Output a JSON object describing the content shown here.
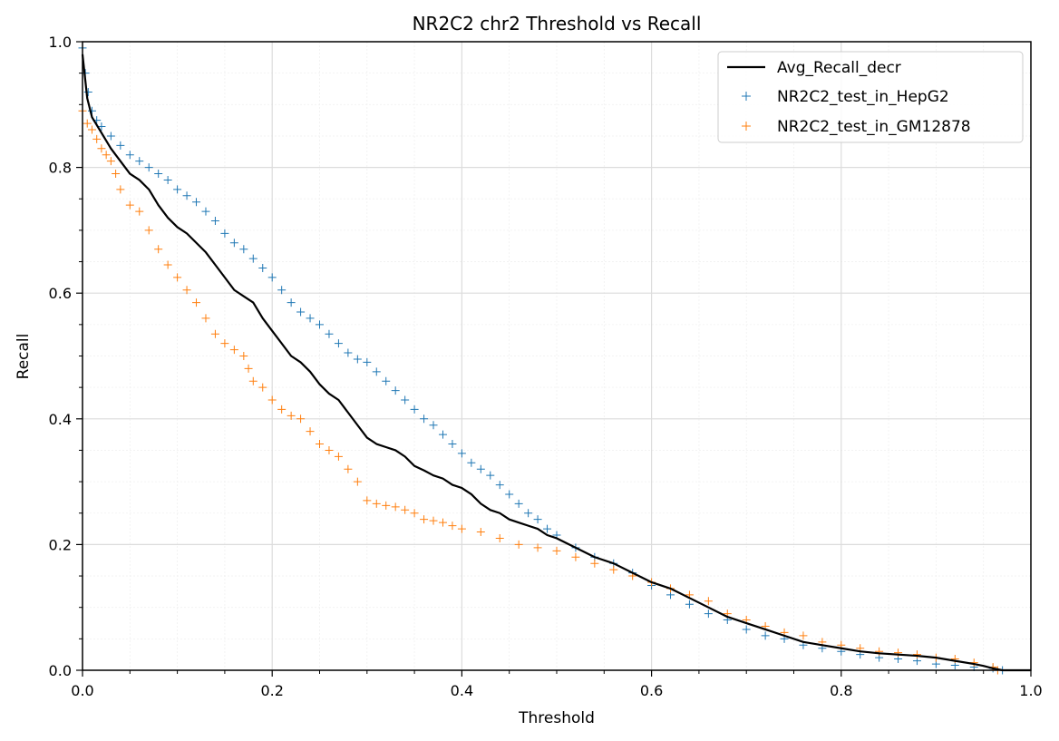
{
  "chart_data": {
    "type": "line",
    "title": "NR2C2 chr2 Threshold vs Recall",
    "xlabel": "Threshold",
    "ylabel": "Recall",
    "xlim": [
      0.0,
      1.0
    ],
    "ylim": [
      0.0,
      1.0
    ],
    "xticks": [
      "0.0",
      "0.2",
      "0.4",
      "0.6",
      "0.8",
      "1.0"
    ],
    "yticks": [
      "0.0",
      "0.2",
      "0.4",
      "0.6",
      "0.8",
      "1.0"
    ],
    "grid": true,
    "minor_grid": true,
    "legend_position": "top-right",
    "colors": {
      "avg": "#000000",
      "hepg2": "#1f77b4",
      "gm12878": "#ff7f0e",
      "grid_major": "#dcdcdc",
      "grid_minor": "#f0f0f0"
    },
    "series": [
      {
        "name": "Avg_Recall_decr",
        "style": "line",
        "color": "#000000",
        "x": [
          0.0,
          0.005,
          0.01,
          0.02,
          0.03,
          0.04,
          0.05,
          0.06,
          0.07,
          0.08,
          0.09,
          0.1,
          0.11,
          0.12,
          0.13,
          0.14,
          0.15,
          0.16,
          0.17,
          0.18,
          0.19,
          0.2,
          0.21,
          0.22,
          0.23,
          0.24,
          0.25,
          0.26,
          0.27,
          0.28,
          0.29,
          0.3,
          0.31,
          0.32,
          0.33,
          0.34,
          0.35,
          0.36,
          0.37,
          0.38,
          0.39,
          0.4,
          0.41,
          0.42,
          0.43,
          0.44,
          0.45,
          0.46,
          0.47,
          0.48,
          0.49,
          0.5,
          0.52,
          0.54,
          0.56,
          0.58,
          0.6,
          0.62,
          0.64,
          0.66,
          0.68,
          0.7,
          0.72,
          0.74,
          0.76,
          0.78,
          0.8,
          0.82,
          0.84,
          0.86,
          0.88,
          0.9,
          0.92,
          0.94,
          0.95,
          0.96,
          0.97,
          1.0
        ],
        "y": [
          0.98,
          0.91,
          0.88,
          0.855,
          0.83,
          0.81,
          0.79,
          0.78,
          0.765,
          0.74,
          0.72,
          0.705,
          0.695,
          0.68,
          0.665,
          0.645,
          0.625,
          0.605,
          0.595,
          0.585,
          0.56,
          0.54,
          0.52,
          0.5,
          0.49,
          0.475,
          0.455,
          0.44,
          0.43,
          0.41,
          0.39,
          0.37,
          0.36,
          0.355,
          0.35,
          0.34,
          0.325,
          0.318,
          0.31,
          0.305,
          0.295,
          0.29,
          0.28,
          0.265,
          0.255,
          0.25,
          0.24,
          0.235,
          0.23,
          0.225,
          0.215,
          0.21,
          0.195,
          0.18,
          0.17,
          0.155,
          0.14,
          0.13,
          0.115,
          0.1,
          0.085,
          0.075,
          0.065,
          0.055,
          0.045,
          0.04,
          0.035,
          0.03,
          0.027,
          0.025,
          0.023,
          0.02,
          0.015,
          0.01,
          0.007,
          0.003,
          0.0,
          0.0
        ]
      },
      {
        "name": "NR2C2_test_in_HepG2",
        "style": "scatter",
        "marker": "+",
        "color": "#1f77b4",
        "x": [
          0.0,
          0.003,
          0.006,
          0.01,
          0.015,
          0.02,
          0.03,
          0.04,
          0.05,
          0.06,
          0.07,
          0.08,
          0.09,
          0.1,
          0.11,
          0.12,
          0.13,
          0.14,
          0.15,
          0.16,
          0.17,
          0.18,
          0.19,
          0.2,
          0.21,
          0.22,
          0.23,
          0.24,
          0.25,
          0.26,
          0.27,
          0.28,
          0.29,
          0.3,
          0.31,
          0.32,
          0.33,
          0.34,
          0.35,
          0.36,
          0.37,
          0.38,
          0.39,
          0.4,
          0.41,
          0.42,
          0.43,
          0.44,
          0.45,
          0.46,
          0.47,
          0.48,
          0.49,
          0.5,
          0.52,
          0.54,
          0.56,
          0.58,
          0.6,
          0.62,
          0.64,
          0.66,
          0.68,
          0.7,
          0.72,
          0.74,
          0.76,
          0.78,
          0.8,
          0.82,
          0.84,
          0.86,
          0.88,
          0.9,
          0.92,
          0.94,
          0.96,
          0.97
        ],
        "y": [
          0.99,
          0.95,
          0.92,
          0.89,
          0.875,
          0.865,
          0.85,
          0.835,
          0.82,
          0.81,
          0.8,
          0.79,
          0.78,
          0.765,
          0.755,
          0.745,
          0.73,
          0.715,
          0.695,
          0.68,
          0.67,
          0.655,
          0.64,
          0.625,
          0.605,
          0.585,
          0.57,
          0.56,
          0.55,
          0.535,
          0.52,
          0.505,
          0.495,
          0.49,
          0.475,
          0.46,
          0.445,
          0.43,
          0.415,
          0.4,
          0.39,
          0.375,
          0.36,
          0.345,
          0.33,
          0.32,
          0.31,
          0.295,
          0.28,
          0.265,
          0.25,
          0.24,
          0.225,
          0.215,
          0.195,
          0.18,
          0.17,
          0.155,
          0.135,
          0.12,
          0.105,
          0.09,
          0.08,
          0.065,
          0.055,
          0.05,
          0.04,
          0.035,
          0.03,
          0.025,
          0.02,
          0.018,
          0.015,
          0.01,
          0.008,
          0.005,
          0.003,
          0.0
        ]
      },
      {
        "name": "NR2C2_test_in_GM12878",
        "style": "scatter",
        "marker": "+",
        "color": "#ff7f0e",
        "x": [
          0.0,
          0.005,
          0.01,
          0.015,
          0.02,
          0.025,
          0.03,
          0.035,
          0.04,
          0.05,
          0.06,
          0.07,
          0.08,
          0.09,
          0.1,
          0.11,
          0.12,
          0.13,
          0.14,
          0.15,
          0.16,
          0.17,
          0.175,
          0.18,
          0.19,
          0.2,
          0.21,
          0.22,
          0.23,
          0.24,
          0.25,
          0.26,
          0.27,
          0.28,
          0.29,
          0.3,
          0.31,
          0.32,
          0.33,
          0.34,
          0.35,
          0.36,
          0.37,
          0.38,
          0.39,
          0.4,
          0.42,
          0.44,
          0.46,
          0.48,
          0.5,
          0.52,
          0.54,
          0.56,
          0.58,
          0.6,
          0.62,
          0.64,
          0.66,
          0.68,
          0.7,
          0.72,
          0.74,
          0.76,
          0.78,
          0.8,
          0.82,
          0.84,
          0.86,
          0.88,
          0.9,
          0.92,
          0.94,
          0.96,
          0.965
        ],
        "y": [
          0.89,
          0.87,
          0.86,
          0.845,
          0.83,
          0.82,
          0.81,
          0.79,
          0.765,
          0.74,
          0.73,
          0.7,
          0.67,
          0.645,
          0.625,
          0.605,
          0.585,
          0.56,
          0.535,
          0.52,
          0.51,
          0.5,
          0.48,
          0.46,
          0.45,
          0.43,
          0.415,
          0.405,
          0.4,
          0.38,
          0.36,
          0.35,
          0.34,
          0.32,
          0.3,
          0.27,
          0.265,
          0.262,
          0.26,
          0.255,
          0.25,
          0.24,
          0.238,
          0.235,
          0.23,
          0.225,
          0.22,
          0.21,
          0.2,
          0.195,
          0.19,
          0.18,
          0.17,
          0.16,
          0.15,
          0.14,
          0.13,
          0.12,
          0.11,
          0.09,
          0.08,
          0.07,
          0.06,
          0.055,
          0.045,
          0.04,
          0.035,
          0.03,
          0.028,
          0.025,
          0.02,
          0.018,
          0.012,
          0.005,
          0.0
        ]
      }
    ]
  }
}
